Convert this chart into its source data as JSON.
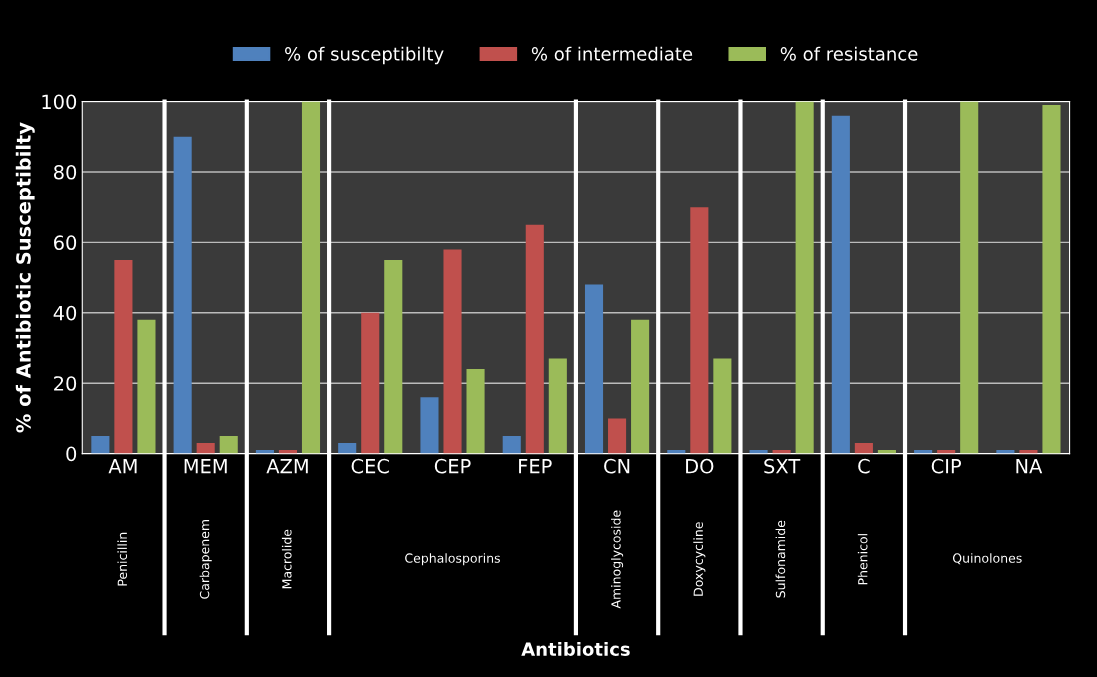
{
  "chart_data": {
    "type": "bar",
    "ylabel": "% of Antibiotic Susceptibilty",
    "categories": [
      "AM",
      "MEM",
      "AZM",
      "CEC",
      "CEP",
      "FEP",
      "CN",
      "DO",
      "SXT",
      "C",
      "CIP",
      "NA"
    ],
    "series": [
      {
        "name": "% of susceptibilty",
        "color": "#4f81bd",
        "values": [
          5,
          90,
          1,
          3,
          16,
          5,
          48,
          1,
          1,
          96,
          1,
          1
        ]
      },
      {
        "name": "% of intermediate",
        "color": "#c0504d",
        "values": [
          55,
          3,
          1,
          40,
          58,
          65,
          10,
          70,
          1,
          3,
          1,
          1
        ]
      },
      {
        "name": "% of resistance",
        "color": "#9bbb59",
        "values": [
          38,
          5,
          100,
          55,
          24,
          27,
          38,
          27,
          100,
          1,
          100,
          99
        ]
      }
    ],
    "ylim": [
      0,
      100
    ],
    "yticks": [
      0,
      20,
      40,
      60,
      80,
      100
    ],
    "grid": "y",
    "legend": "top",
    "annotations": [
      "Penicillin",
      "Carbapenem",
      "Macrolide",
      "Cephalosporins",
      "Aminoglycoside",
      "Doxycycline",
      "Sulfonamide",
      "Phenicol",
      "Quinolones",
      "Antibiotics"
    ]
  }
}
